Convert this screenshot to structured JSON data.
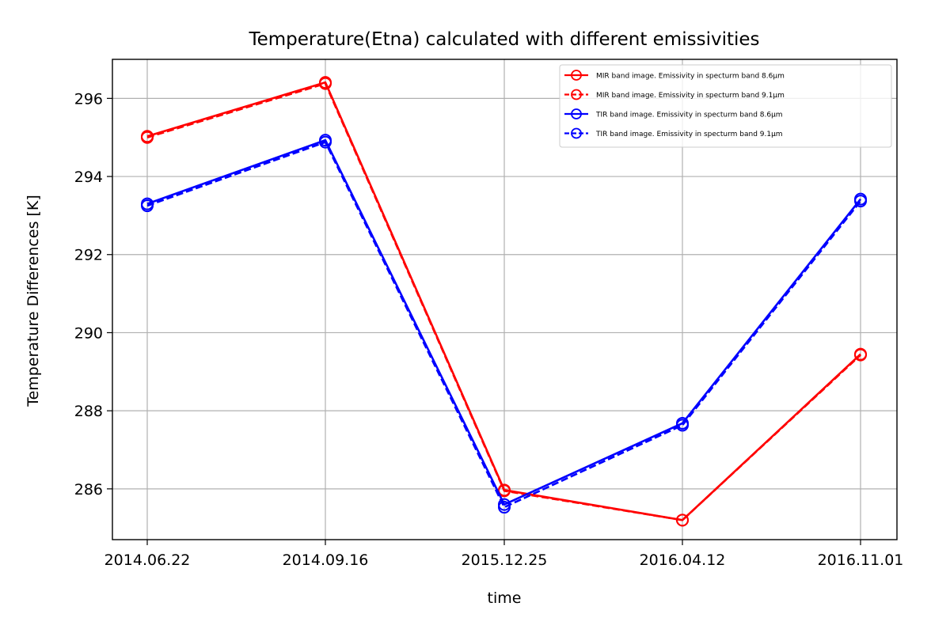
{
  "chart_data": {
    "type": "line",
    "title": "Temperature(Etna) calculated with different emissivities",
    "xlabel": "time",
    "ylabel": "Temperature Differences [K]",
    "categories": [
      "2014.06.22",
      "2014.09.16",
      "2015.12.25",
      "2016.04.12",
      "2016.11.01"
    ],
    "yticks": [
      "286",
      "288",
      "290",
      "292",
      "294",
      "296"
    ],
    "ylim": [
      284.7,
      297.0
    ],
    "grid": true,
    "legend_position": "top-right",
    "series": [
      {
        "name": "MIR band image. Emissivity in specturm band 8.6μm",
        "color": "#ff0000",
        "linestyle": "solid",
        "marker": "open-circle",
        "values": [
          295.03,
          296.41,
          285.97,
          285.2,
          289.45
        ]
      },
      {
        "name": "MIR band image. Emissivity in specturm band 9.1μm",
        "color": "#ff0000",
        "linestyle": "dashed",
        "marker": "open-circle",
        "values": [
          295.0,
          296.38,
          285.95,
          285.2,
          289.43
        ]
      },
      {
        "name": "TIR band image. Emissivity in specturm band 8.6μm",
        "color": "#0000ff",
        "linestyle": "solid",
        "marker": "open-circle",
        "values": [
          293.3,
          294.93,
          285.6,
          287.68,
          293.42
        ]
      },
      {
        "name": "TIR band image. Emissivity in specturm band 9.1μm",
        "color": "#0000ff",
        "linestyle": "dashed",
        "marker": "open-circle",
        "values": [
          293.25,
          294.88,
          285.53,
          287.63,
          293.37
        ]
      }
    ]
  }
}
